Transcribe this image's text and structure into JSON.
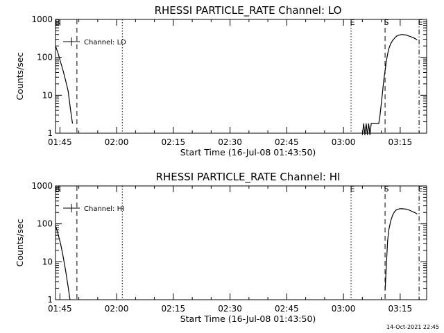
{
  "chart_data": [
    {
      "type": "line",
      "title": "RHESSI PARTICLE_RATE Channel: LO",
      "xlabel": "Start Time (16-Jul-08 01:43:50)",
      "ylabel": "Counts/sec",
      "yscale": "log",
      "ylim": [
        1,
        1000
      ],
      "yticks": [
        "1",
        "10",
        "100",
        "1000"
      ],
      "xlim": [
        "01:43:50",
        "03:22:00"
      ],
      "xticks": [
        "01:45",
        "02:00",
        "02:15",
        "02:30",
        "02:45",
        "03:00",
        "03:15"
      ],
      "legend": {
        "position": "top-left",
        "entries": [
          "Channel: LO"
        ]
      },
      "series": [
        {
          "name": "Channel: LO",
          "color": "#000000",
          "segments": [
            {
              "x": [
                "01:43:50",
                "01:44:30",
                "01:45:10",
                "01:45:50",
                "01:46:30",
                "01:47:10",
                "01:47:50",
                "01:48:20"
              ],
              "y": [
                200,
                130,
                75,
                45,
                25,
                13,
                4,
                1.8
              ]
            },
            {
              "x": [
                "03:05:00",
                "03:05:20",
                "03:05:40",
                "03:06:00",
                "03:06:20",
                "03:06:40",
                "03:07:00",
                "03:07:20",
                "03:07:40",
                "03:08:00",
                "03:08:20",
                "03:08:40",
                "03:09:00",
                "03:09:20",
                "03:09:40",
                "03:10:00",
                "03:10:20",
                "03:10:40",
                "03:11:00",
                "03:11:20",
                "03:11:40",
                "03:12:00",
                "03:12:30",
                "03:13:00",
                "03:13:30",
                "03:14:00",
                "03:14:30",
                "03:15:00",
                "03:15:30",
                "03:16:00",
                "03:16:30",
                "03:17:00",
                "03:17:30",
                "03:18:00",
                "03:18:30",
                "03:19:00",
                "03:19:30"
              ],
              "y": [
                0.9,
                1.8,
                0.9,
                1.8,
                0.9,
                1.8,
                0.9,
                1.8,
                1.8,
                1.8,
                1.8,
                1.8,
                1.8,
                1.8,
                3,
                6,
                12,
                25,
                45,
                80,
                120,
                170,
                230,
                280,
                320,
                360,
                380,
                395,
                400,
                395,
                390,
                375,
                360,
                345,
                330,
                310,
                290
              ]
            }
          ]
        }
      ],
      "markers": [
        {
          "label": "E",
          "time": "03:02:00",
          "style": "dotted"
        },
        {
          "label": "S",
          "time": "03:11:00",
          "style": "dashed"
        },
        {
          "label": "E",
          "time": "03:20:00",
          "style": "dash-dot"
        },
        {
          "label": "B",
          "time": "01:44:00",
          "style": "none"
        }
      ],
      "vlines": [
        {
          "time": "01:49:30",
          "style": "dashed"
        },
        {
          "time": "02:01:30",
          "style": "dotted"
        }
      ]
    },
    {
      "type": "line",
      "title": "RHESSI PARTICLE_RATE Channel: HI",
      "xlabel": "Start Time (16-Jul-08 01:43:50)",
      "ylabel": "Counts/sec",
      "yscale": "log",
      "ylim": [
        1,
        1000
      ],
      "yticks": [
        "1",
        "10",
        "100",
        "1000"
      ],
      "xlim": [
        "01:43:50",
        "03:22:00"
      ],
      "xticks": [
        "01:45",
        "02:00",
        "02:15",
        "02:30",
        "02:45",
        "03:00",
        "03:15"
      ],
      "legend": {
        "position": "top-left",
        "entries": [
          "Channel: HI"
        ]
      },
      "series": [
        {
          "name": "Channel: HI",
          "color": "#000000",
          "segments": [
            {
              "x": [
                "01:43:50",
                "01:44:30",
                "01:45:10",
                "01:45:50",
                "01:46:30",
                "01:47:10",
                "01:47:40"
              ],
              "y": [
                90,
                55,
                30,
                14,
                6,
                2.2,
                1.0
              ]
            },
            {
              "x": [
                "03:11:00",
                "03:11:20",
                "03:11:40",
                "03:12:00",
                "03:12:30",
                "03:13:00",
                "03:13:30",
                "03:14:00",
                "03:14:30",
                "03:15:00",
                "03:15:30",
                "03:16:00",
                "03:16:30",
                "03:17:00",
                "03:17:30",
                "03:18:00",
                "03:18:30",
                "03:19:00",
                "03:19:30"
              ],
              "y": [
                1.8,
                8,
                35,
                70,
                120,
                170,
                210,
                235,
                245,
                250,
                250,
                248,
                245,
                238,
                228,
                215,
                205,
                195,
                180
              ]
            }
          ]
        }
      ],
      "markers": [
        {
          "label": "E",
          "time": "03:02:00",
          "style": "dotted"
        },
        {
          "label": "S",
          "time": "03:11:00",
          "style": "dashed"
        },
        {
          "label": "E",
          "time": "03:20:00",
          "style": "dash-dot"
        },
        {
          "label": "B",
          "time": "01:44:00",
          "style": "none"
        }
      ],
      "vlines": [
        {
          "time": "01:49:30",
          "style": "dashed"
        },
        {
          "time": "02:01:30",
          "style": "dotted"
        }
      ]
    }
  ],
  "footer": {
    "timestamp": "14-Oct-2021 22:45"
  }
}
